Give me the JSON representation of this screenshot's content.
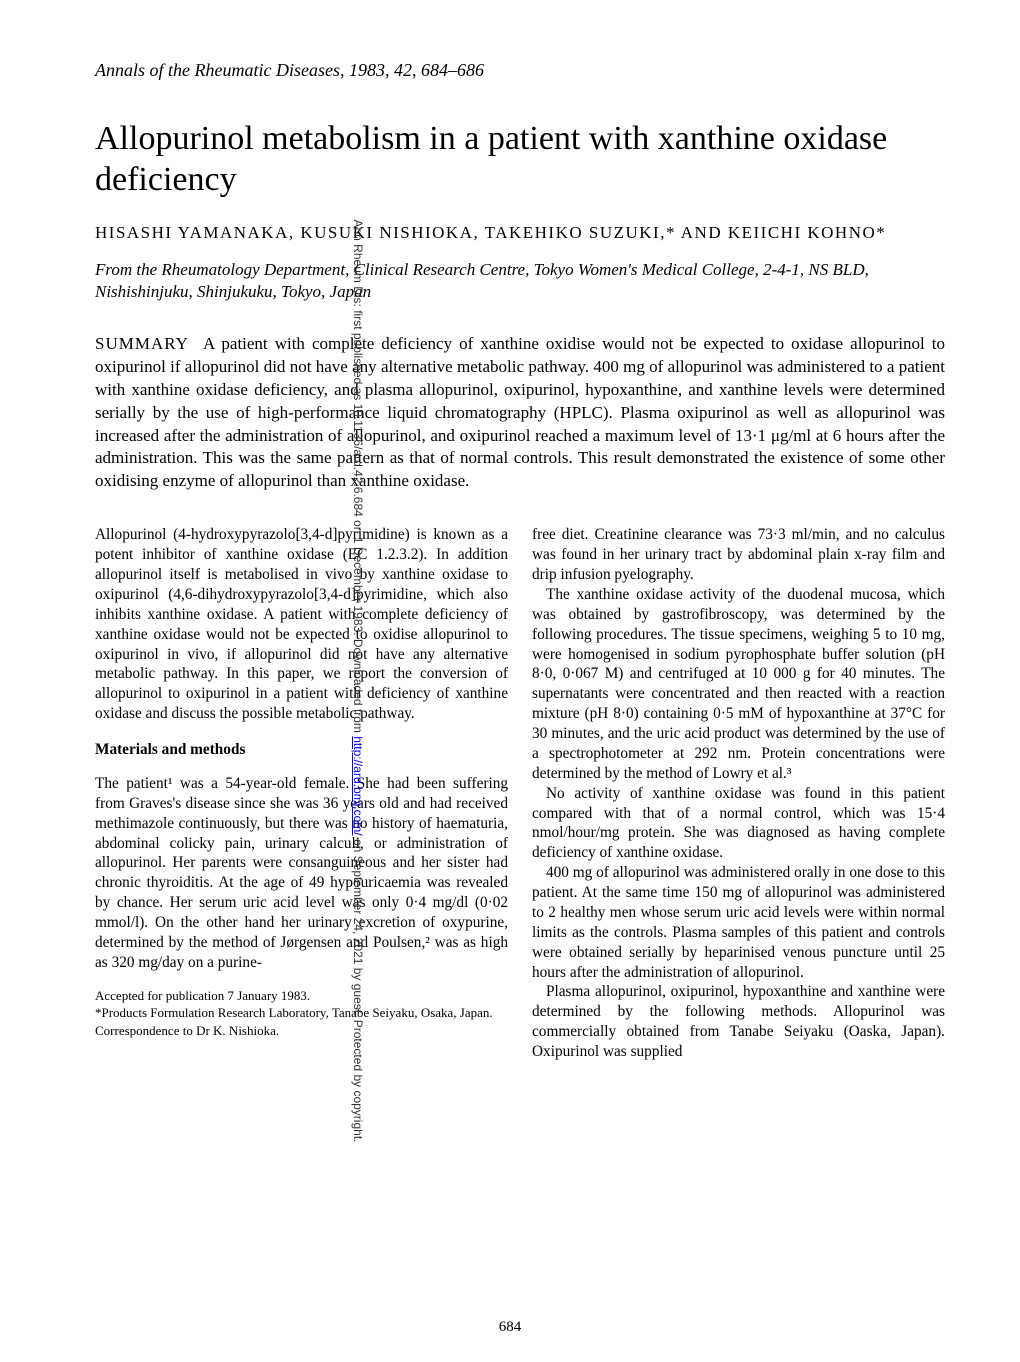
{
  "journal_header": "Annals of the Rheumatic Diseases, 1983, 42, 684–686",
  "title": "Allopurinol metabolism in a patient with xanthine oxidase deficiency",
  "authors": "HISASHI YAMANAKA, KUSUKI NISHIOKA, TAKEHIKO SUZUKI,* AND KEIICHI KOHNO*",
  "affiliation": "From the Rheumatology Department, Clinical Research Centre, Tokyo Women's Medical College, 2-4-1, NS BLD, Nishishinjuku, Shinjukuku, Tokyo, Japan",
  "summary_label": "SUMMARY",
  "summary_text": "A patient with complete deficiency of xanthine oxidise would not be expected to oxidase allopurinol to oxipurinol if allopurinol did not have any alternative metabolic pathway. 400 mg of allopurinol was administered to a patient with xanthine oxidase deficiency, and plasma allopurinol, oxipurinol, hypoxanthine, and xanthine levels were determined serially by the use of high-performance liquid chromatography (HPLC). Plasma oxipurinol as well as allopurinol was increased after the administration of allopurinol, and oxipurinol reached a maximum level of 13·1 μg/ml at 6 hours after the administration. This was the same pattern as that of normal controls. This result demonstrated the existence of some other oxidising enzyme of allopurinol than xanthine oxidase.",
  "left_column": {
    "intro": "Allopurinol (4-hydroxypyrazolo[3,4-d]pyrimidine) is known as a potent inhibitor of xanthine oxidase (EC 1.2.3.2). In addition allopurinol itself is metabolised in vivo by xanthine oxidase to oxipurinol (4,6-dihydroxypyrazolo[3,4-d]pyrimidine, which also inhibits xanthine oxidase. A patient with complete deficiency of xanthine oxidase would not be expected to oxidise allopurinol to oxipurinol in vivo, if allopurinol did not have any alternative metabolic pathway. In this paper, we report the conversion of allopurinol to oxipurinol in a patient with deficiency of xanthine oxidase and discuss the possible metabolic pathway.",
    "section_heading": "Materials and methods",
    "methods_p1": "The patient¹ was a 54-year-old female. She had been suffering from Graves's disease since she was 36 years old and had received methimazole continuously, but there was no history of haematuria, abdominal colicky pain, urinary calculi, or administration of allopurinol. Her parents were consanguineous and her sister had chronic thyroiditis. At the age of 49 hypouricaemia was revealed by chance. Her serum uric acid level was only 0·4 mg/dl (0·02 mmol/l). On the other hand her urinary excretion of oxypurine, determined by the method of Jørgensen and Poulsen,² was as high as 320 mg/day on a purine-",
    "footnote_accepted": "Accepted for publication 7 January 1983.",
    "footnote_products": "*Products Formulation Research Laboratory, Tanabe Seiyaku, Osaka, Japan.",
    "footnote_correspondence": "Correspondence to Dr K. Nishioka."
  },
  "right_column": {
    "p1": "free diet. Creatinine clearance was 73·3 ml/min, and no calculus was found in her urinary tract by abdominal plain x-ray film and drip infusion pyelography.",
    "p2": "The xanthine oxidase activity of the duodenal mucosa, which was obtained by gastrofibroscopy, was determined by the following procedures. The tissue specimens, weighing 5 to 10 mg, were homogenised in sodium pyrophosphate buffer solution (pH 8·0, 0·067 M) and centrifuged at 10 000 g for 40 minutes. The supernatants were concentrated and then reacted with a reaction mixture (pH 8·0) containing 0·5 mM of hypoxanthine at 37°C for 30 minutes, and the uric acid product was determined by the use of a spectrophotometer at 292 nm. Protein concentrations were determined by the method of Lowry et al.³",
    "p3": "No activity of xanthine oxidase was found in this patient compared with that of a normal control, which was 15·4 nmol/hour/mg protein. She was diagnosed as having complete deficiency of xanthine oxidase.",
    "p4": "400 mg of allopurinol was administered orally in one dose to this patient. At the same time 150 mg of allopurinol was administered to 2 healthy men whose serum uric acid levels were within normal limits as the controls. Plasma samples of this patient and controls were obtained serially by heparinised venous puncture until 25 hours after the administration of allopurinol.",
    "p5": "Plasma allopurinol, oxipurinol, hypoxanthine and xanthine were determined by the following methods. Allopurinol was commercially obtained from Tanabe Seiyaku (Oaska, Japan). Oxipurinol was supplied"
  },
  "page_number": "684",
  "side_text_prefix": "Ann Rheum Dis: first published as 10.1136/ard.42.6.684 on 1 December 1983. Downloaded from ",
  "side_text_link": "http://ard.bmj.com/",
  "side_text_suffix": " on September 24, 2021 by guest. Protected by copyright."
}
